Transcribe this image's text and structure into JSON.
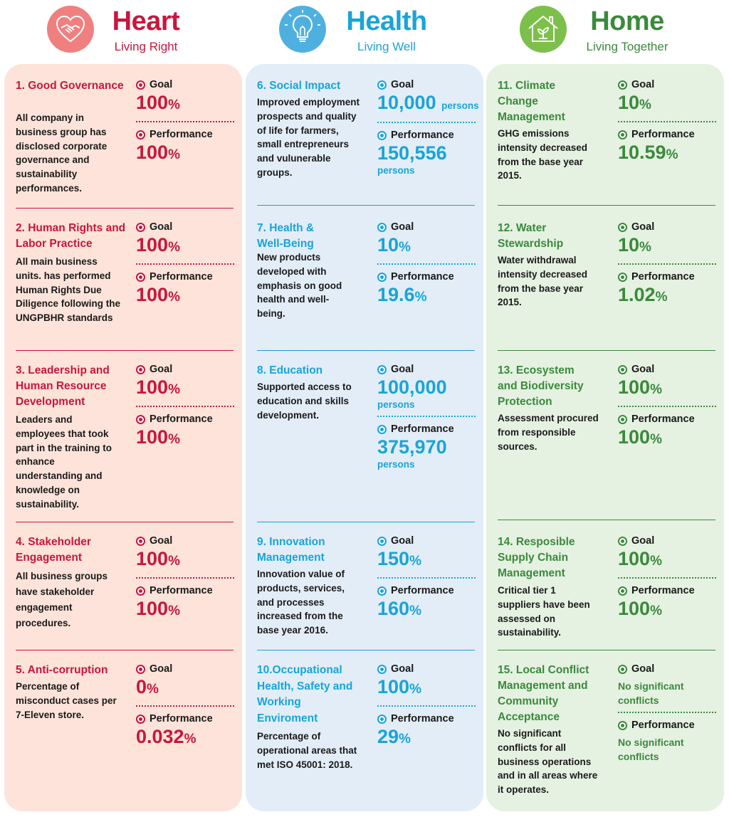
{
  "colors": {
    "heart": "#c8163d",
    "health": "#19a4d8",
    "home": "#3a8a3c"
  },
  "columns": {
    "heart": {
      "title": "Heart",
      "subtitle": "Living Right",
      "icon": "handshake-heart-icon",
      "sections": [
        {
          "name": "1. Good Governance",
          "desc": "All company in business group has disclosed corporate governance and sustainability performances.",
          "goal_label": "Goal",
          "goal": "100",
          "goal_unit": "%",
          "perf_label": "Performance",
          "perf": "100",
          "perf_unit": "%"
        },
        {
          "name": "2. Human Rights and Labor Practice",
          "desc": "All main business units. has performed Human Rights Due Diligence following the UNGPBHR standards",
          "goal_label": "Goal",
          "goal": "100",
          "goal_unit": "%",
          "perf_label": "Performance",
          "perf": "100",
          "perf_unit": "%"
        },
        {
          "name": "3. Leadership and Human Resource Development",
          "desc": "Leaders and employees that took part in the training to enhance understanding and knowledge on sustainability.",
          "goal_label": "Goal",
          "goal": "100",
          "goal_unit": "%",
          "perf_label": "Performance",
          "perf": "100",
          "perf_unit": "%"
        },
        {
          "name": "4. Stakeholder Engagement",
          "desc": "All business groups have stakeholder engagement procedures.",
          "goal_label": "Goal",
          "goal": "100",
          "goal_unit": "%",
          "perf_label": "Performance",
          "perf": "100",
          "perf_unit": "%"
        },
        {
          "name": "5. Anti-corruption",
          "desc": "Percentage of misconduct cases per 7-Eleven store.",
          "goal_label": "Goal",
          "goal": "0",
          "goal_unit": "%",
          "perf_label": "Performance",
          "perf": "0.032",
          "perf_unit": "%"
        }
      ]
    },
    "health": {
      "title": "Health",
      "subtitle": "Living Well",
      "icon": "lightbulb-icon",
      "sections": [
        {
          "name": "6. Social Impact",
          "desc": "Improved employment prospects and quality of life for farmers, small entrepreneurs and vulunerable groups.",
          "goal_label": "Goal",
          "goal": "10,000",
          "goal_unit": "persons",
          "perf_label": "Performance",
          "perf": "150,556",
          "perf_unit": "persons"
        },
        {
          "name": "7. Health & Well-Being",
          "desc": "New products developed with emphasis on good health and well-being.",
          "goal_label": "Goal",
          "goal": "10",
          "goal_unit": "%",
          "perf_label": "Performance",
          "perf": "19.6",
          "perf_unit": "%"
        },
        {
          "name": "8. Education",
          "desc": "Supported access to education and skills development.",
          "goal_label": "Goal",
          "goal": "100,000",
          "goal_unit": "persons",
          "perf_label": "Performance",
          "perf": "375,970",
          "perf_unit": "persons"
        },
        {
          "name": "9. Innovation Management",
          "desc": "Innovation value of products, services, and processes increased from the base year 2016.",
          "goal_label": "Goal",
          "goal": "150",
          "goal_unit": "%",
          "perf_label": "Performance",
          "perf": "160",
          "perf_unit": "%"
        },
        {
          "name": "10.Occupational Health, Safety and Working Enviroment",
          "desc": "Percentage of operational areas that met ISO 45001: 2018.",
          "goal_label": "Goal",
          "goal": "100",
          "goal_unit": "%",
          "perf_label": "Performance",
          "perf": "29",
          "perf_unit": "%"
        }
      ]
    },
    "home": {
      "title": "Home",
      "subtitle": "Living Together",
      "icon": "house-plant-icon",
      "sections": [
        {
          "name": "11. Climate Change Management",
          "desc": "GHG emissions intensity decreased from the base year 2015.",
          "goal_label": "Goal",
          "goal": "10",
          "goal_unit": "%",
          "perf_label": "Performance",
          "perf": "10.59",
          "perf_unit": "%"
        },
        {
          "name": "12. Water Stewardship",
          "desc": "Water withdrawal intensity decreased from the base year 2015.",
          "goal_label": "Goal",
          "goal": "10",
          "goal_unit": "%",
          "perf_label": "Performance",
          "perf": "1.02",
          "perf_unit": "%"
        },
        {
          "name": "13. Ecosystem and Biodiversity Protection",
          "desc": "Assessment procured from responsible sources.",
          "goal_label": "Goal",
          "goal": "100",
          "goal_unit": "%",
          "perf_label": "Performance",
          "perf": "100",
          "perf_unit": "%"
        },
        {
          "name": "14. Resposible Supply Chain Management",
          "desc": "Critical tier 1 suppliers have been assessed on sustainability.",
          "goal_label": "Goal",
          "goal": "100",
          "goal_unit": "%",
          "perf_label": "Performance",
          "perf": "100",
          "perf_unit": "%"
        },
        {
          "name": "15. Local Conflict Management and Community Acceptance",
          "desc": "No significant conflicts for all business operations and in all areas where it operates.",
          "goal_label": "Goal",
          "goal_text": "No significant conflicts",
          "perf_label": "Performance",
          "perf_text": "No significant conflicts"
        }
      ]
    }
  }
}
